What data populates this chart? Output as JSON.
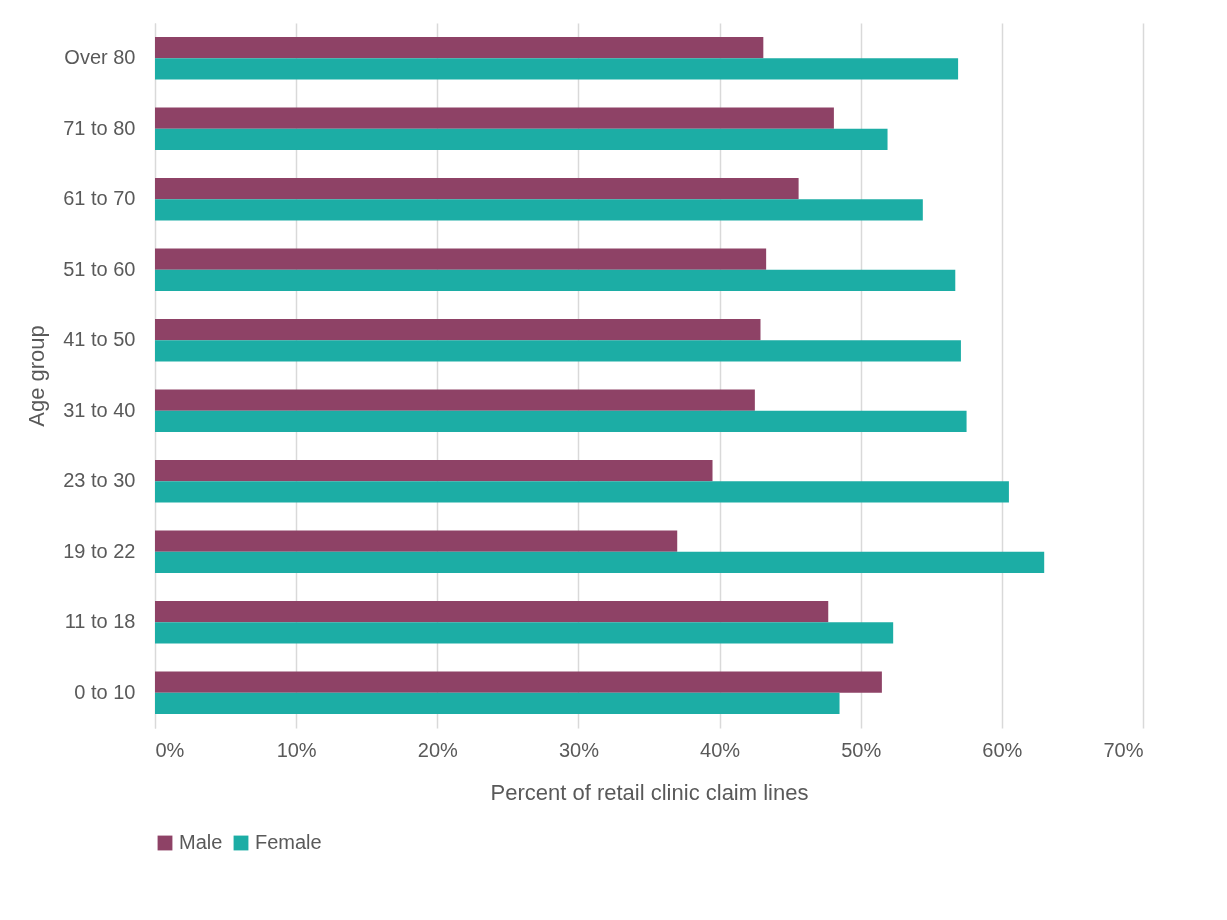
{
  "chart_data": {
    "type": "bar",
    "orientation": "horizontal",
    "xlabel": "Percent of retail clinic claim lines",
    "ylabel": "Age group",
    "categories": [
      "Over 80",
      "71 to 80",
      "61 to 70",
      "51 to 60",
      "41 to 50",
      "31 to 40",
      "23 to 30",
      "19 to 22",
      "11 to 18",
      "0 to 10"
    ],
    "series": [
      {
        "name": "Male",
        "color": "#8e4266",
        "values": [
          43.1,
          48.1,
          45.6,
          43.3,
          42.9,
          42.5,
          39.5,
          37.0,
          47.7,
          51.5
        ]
      },
      {
        "name": "Female",
        "color": "#1cada5",
        "values": [
          56.9,
          51.9,
          54.4,
          56.7,
          57.1,
          57.5,
          60.5,
          63.0,
          52.3,
          48.5
        ]
      }
    ],
    "xlim": [
      0,
      70
    ],
    "xticks": [
      {
        "value": 0,
        "label": "0%"
      },
      {
        "value": 10,
        "label": "10%"
      },
      {
        "value": 20,
        "label": "20%"
      },
      {
        "value": 30,
        "label": "30%"
      },
      {
        "value": 40,
        "label": "40%"
      },
      {
        "value": 50,
        "label": "50%"
      },
      {
        "value": 60,
        "label": "60%"
      },
      {
        "value": 70,
        "label": "70%"
      }
    ],
    "grid": "x",
    "legend": "bottom"
  }
}
